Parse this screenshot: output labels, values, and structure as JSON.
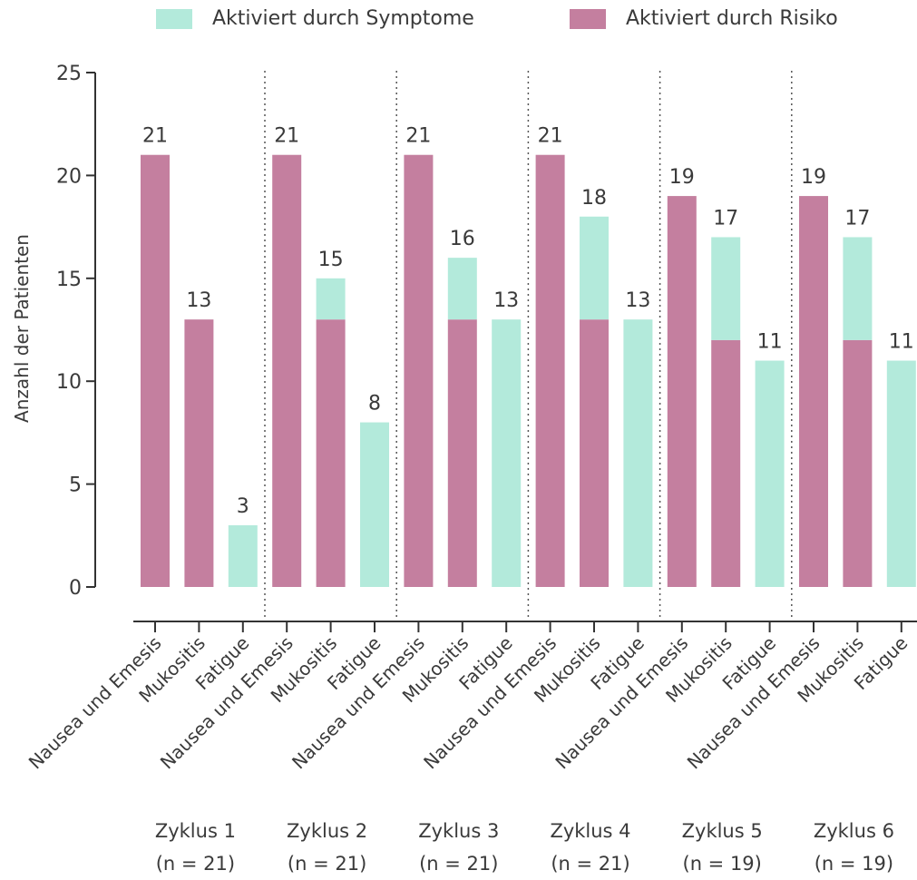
{
  "chart_data": {
    "type": "bar",
    "stacked": true,
    "ylabel": "Anzahl der Patienten",
    "ylim": [
      0,
      25
    ],
    "yticks": [
      0,
      5,
      10,
      15,
      20,
      25
    ],
    "legend": {
      "placement": "top"
    },
    "series": [
      {
        "name": "Aktiviert durch Symptome",
        "color": "#b3eadb",
        "values": [
          0,
          0,
          3,
          0,
          2,
          8,
          0,
          3,
          13,
          0,
          5,
          13,
          0,
          5,
          11,
          0,
          5,
          11
        ]
      },
      {
        "name": "Aktiviert durch Risiko",
        "color": "#c47f9f",
        "values": [
          21,
          13,
          0,
          21,
          13,
          0,
          21,
          13,
          0,
          21,
          13,
          0,
          19,
          12,
          0,
          19,
          12,
          0
        ]
      }
    ],
    "categories": [
      "Nausea und Emesis",
      "Mukositis",
      "Fatigue",
      "Nausea und Emesis",
      "Mukositis",
      "Fatigue",
      "Nausea und Emesis",
      "Mukositis",
      "Fatigue",
      "Nausea und Emesis",
      "Mukositis",
      "Fatigue",
      "Nausea und Emesis",
      "Mukositis",
      "Fatigue",
      "Nausea und Emesis",
      "Mukositis",
      "Fatigue"
    ],
    "totals": [
      21,
      13,
      3,
      21,
      15,
      8,
      21,
      16,
      13,
      21,
      18,
      13,
      19,
      17,
      11,
      19,
      17,
      11
    ],
    "groups": [
      {
        "line1": "Zyklus 1",
        "line2": "(n = 21)"
      },
      {
        "line1": "Zyklus 2",
        "line2": "(n = 21)"
      },
      {
        "line1": "Zyklus 3",
        "line2": "(n = 21)"
      },
      {
        "line1": "Zyklus 4",
        "line2": "(n = 21)"
      },
      {
        "line1": "Zyklus 5",
        "line2": "(n = 19)"
      },
      {
        "line1": "Zyklus 6",
        "line2": "(n = 19)"
      }
    ]
  }
}
